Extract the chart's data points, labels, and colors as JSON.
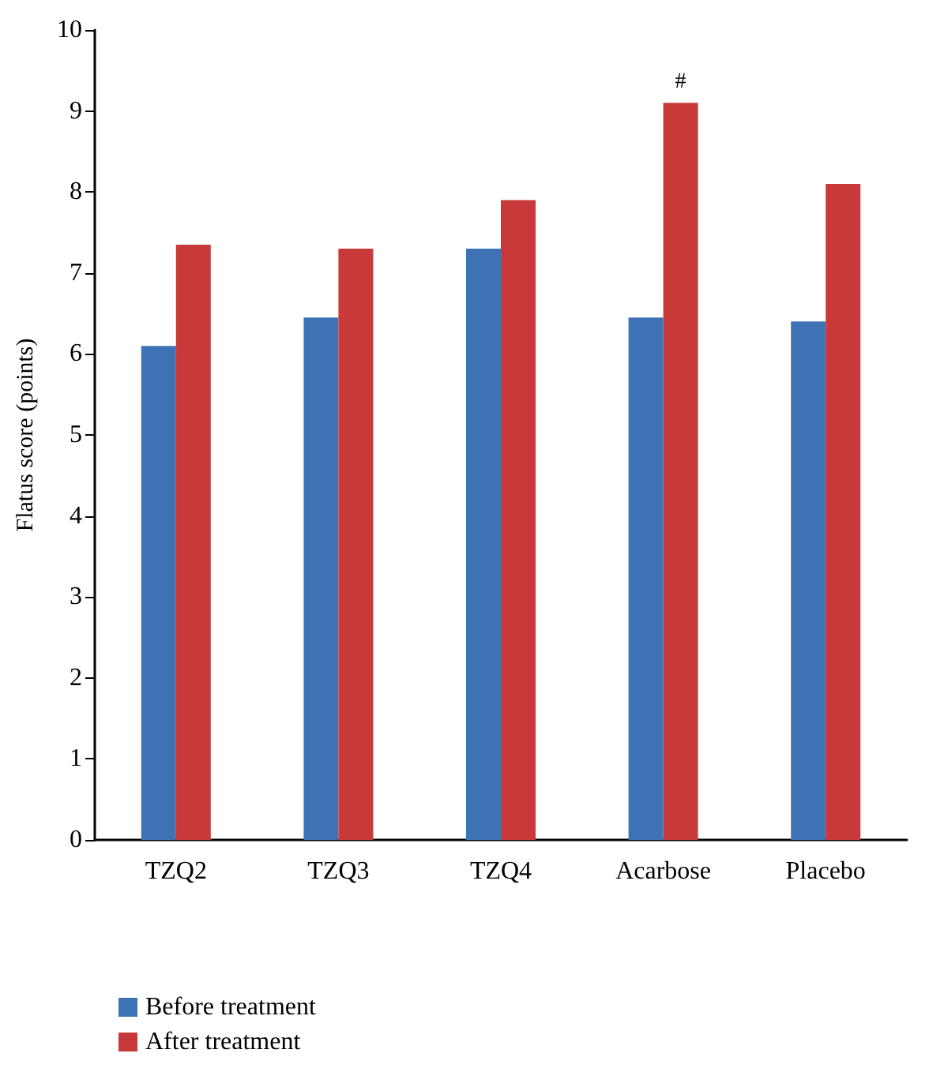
{
  "chart_data": {
    "type": "bar",
    "ylabel": "Flatus score (points)",
    "categories": [
      "TZQ2",
      "TZQ3",
      "TZQ4",
      "Acarbose",
      "Placebo"
    ],
    "series": [
      {
        "name": "Before treatment",
        "color": "#3d72b4",
        "values": [
          6.1,
          6.45,
          7.3,
          6.45,
          6.4
        ]
      },
      {
        "name": "After treatment",
        "color": "#c8393a",
        "values": [
          7.35,
          7.3,
          7.9,
          9.1,
          8.1
        ]
      }
    ],
    "ylim": [
      0,
      10
    ],
    "yticks": [
      0,
      1,
      2,
      3,
      4,
      5,
      6,
      7,
      8,
      9,
      10
    ],
    "grid": false,
    "legend": "bottom left",
    "annotations": [
      {
        "text": "#",
        "x": "Acarbose",
        "y": 9.1
      }
    ]
  }
}
